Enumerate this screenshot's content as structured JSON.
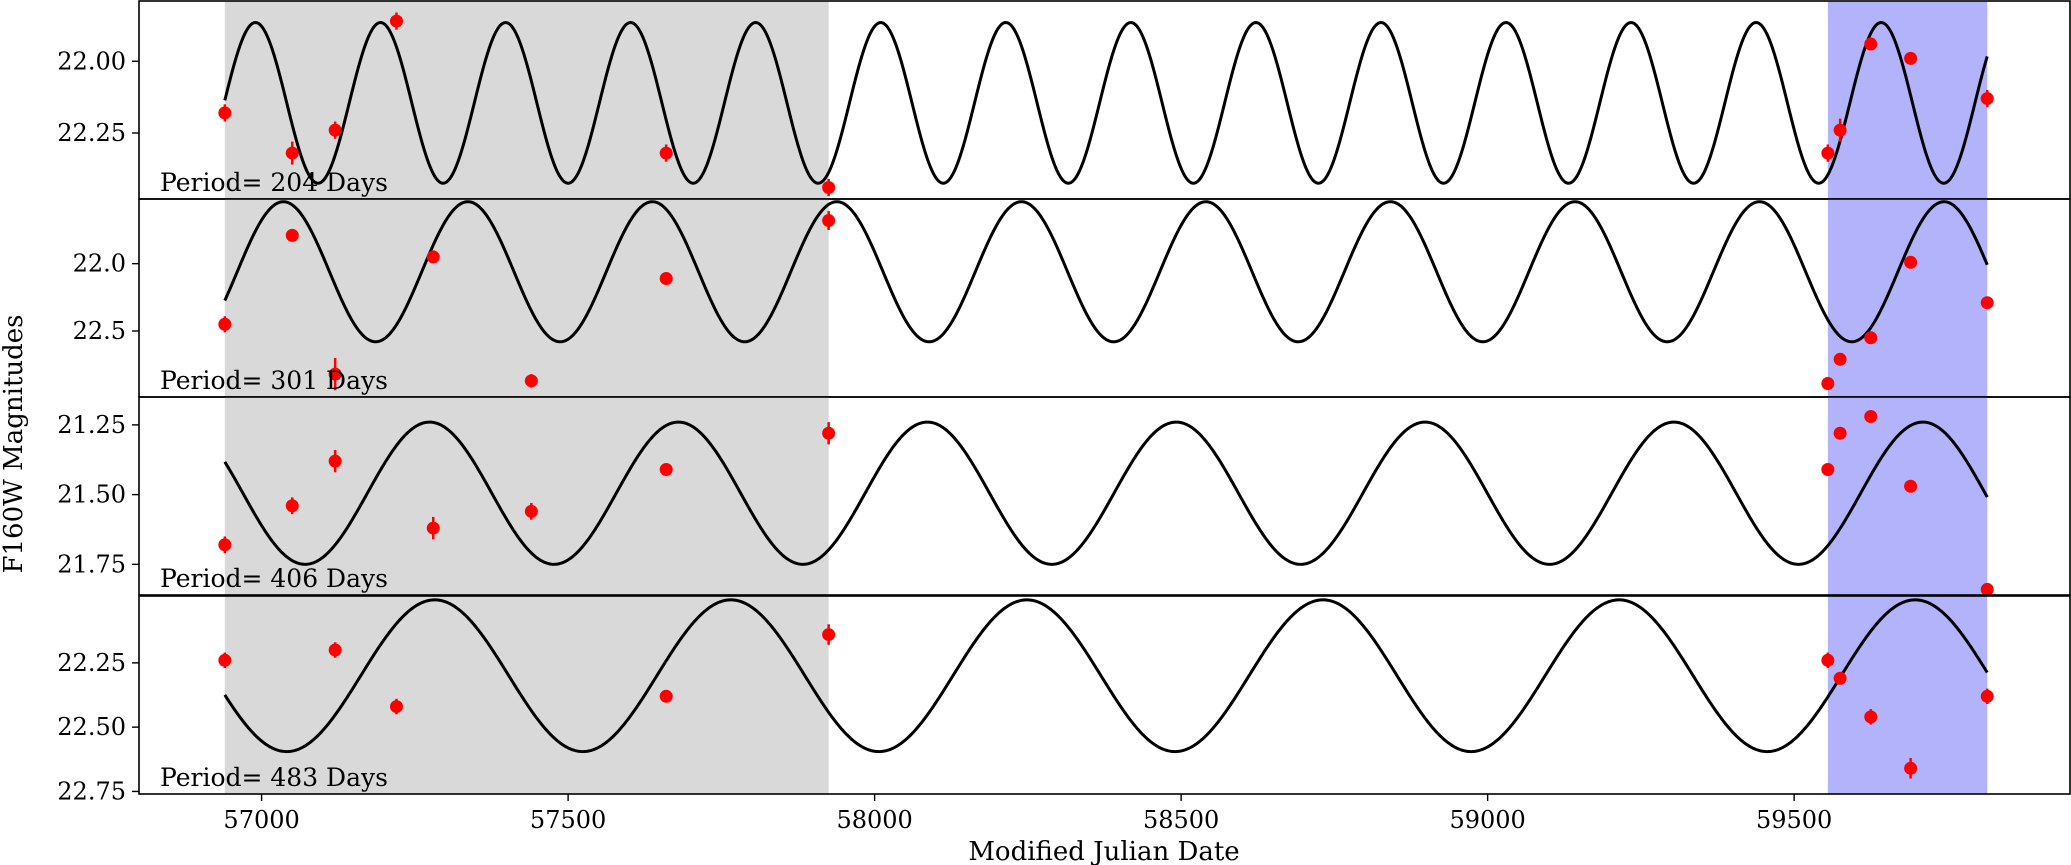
{
  "chart_data": {
    "type": "scatter",
    "xlabel": "Modified Julian Date",
    "ylabel": "F160W Magnitudes",
    "xlim": [
      56800,
      59950
    ],
    "x_ticks": [
      57000,
      57500,
      58000,
      58500,
      59000,
      59500
    ],
    "shaded_regions": [
      {
        "x0": 56940,
        "x1": 57925,
        "color": "#d9d9d9"
      },
      {
        "x0": 59555,
        "x1": 59815,
        "color": "#b3b3fb"
      }
    ],
    "curve_x_range": [
      56940,
      59815
    ],
    "colors": {
      "points": "#ff0000",
      "curve": "#000000"
    },
    "panels": [
      {
        "label": "Period= 204 Days",
        "period": 204,
        "ylim": [
          22.48,
          21.79
        ],
        "y_ticks": [
          22.0,
          22.25
        ],
        "y_tick_labels": [
          "22.00",
          "22.25"
        ],
        "model": {
          "mean": 22.145,
          "amplitude": 0.28,
          "phase_ref": 56888
        },
        "points": [
          {
            "x": 56940,
            "y": 22.18,
            "err": 0.03
          },
          {
            "x": 57050,
            "y": 22.32,
            "err": 0.04
          },
          {
            "x": 57120,
            "y": 22.24,
            "err": 0.03
          },
          {
            "x": 57220,
            "y": 21.86,
            "err": 0.03
          },
          {
            "x": 57660,
            "y": 22.32,
            "err": 0.03
          },
          {
            "x": 57925,
            "y": 22.44,
            "err": 0.03
          },
          {
            "x": 59555,
            "y": 22.32,
            "err": 0.03
          },
          {
            "x": 59575,
            "y": 22.24,
            "err": 0.04
          },
          {
            "x": 59625,
            "y": 21.94,
            "err": 0.02
          },
          {
            "x": 59690,
            "y": 21.99,
            "err": 0.02
          },
          {
            "x": 59815,
            "y": 22.13,
            "err": 0.03
          }
        ]
      },
      {
        "label": "Period= 301 Days",
        "period": 301,
        "ylim": [
          22.99,
          21.52
        ],
        "y_ticks": [
          22.0,
          22.5
        ],
        "y_tick_labels": [
          "22.0",
          "22.5"
        ],
        "model": {
          "mean": 22.06,
          "amplitude": 0.52,
          "phase_ref": 56885
        },
        "points": [
          {
            "x": 56940,
            "y": 22.45,
            "err": 0.06
          },
          {
            "x": 57050,
            "y": 21.79,
            "err": 0.02
          },
          {
            "x": 57120,
            "y": 22.82,
            "err": 0.12
          },
          {
            "x": 57280,
            "y": 21.95,
            "err": 0.02
          },
          {
            "x": 57440,
            "y": 22.87,
            "err": 0.05
          },
          {
            "x": 57660,
            "y": 22.11,
            "err": 0.02
          },
          {
            "x": 57925,
            "y": 21.68,
            "err": 0.07
          },
          {
            "x": 59555,
            "y": 22.89,
            "err": 0.03
          },
          {
            "x": 59575,
            "y": 22.71,
            "err": 0.03
          },
          {
            "x": 59625,
            "y": 22.55,
            "err": 0.03
          },
          {
            "x": 59690,
            "y": 21.99,
            "err": 0.02
          },
          {
            "x": 59815,
            "y": 22.29,
            "err": 0.02
          }
        ]
      },
      {
        "label": "Period= 406 Days",
        "period": 406,
        "ylim": [
          21.86,
          21.15
        ],
        "y_ticks": [
          21.25,
          21.5,
          21.75
        ],
        "y_tick_labels": [
          "21.25",
          "21.50",
          "21.75"
        ],
        "model": {
          "mean": 21.495,
          "amplitude": 0.255,
          "phase_ref": 57071
        },
        "points": [
          {
            "x": 56940,
            "y": 21.68,
            "err": 0.03
          },
          {
            "x": 57050,
            "y": 21.54,
            "err": 0.03
          },
          {
            "x": 57120,
            "y": 21.38,
            "err": 0.04
          },
          {
            "x": 57280,
            "y": 21.62,
            "err": 0.04
          },
          {
            "x": 57440,
            "y": 21.56,
            "err": 0.03
          },
          {
            "x": 57660,
            "y": 21.41,
            "err": 0.02
          },
          {
            "x": 57925,
            "y": 21.28,
            "err": 0.04
          },
          {
            "x": 59555,
            "y": 21.41,
            "err": 0.02
          },
          {
            "x": 59575,
            "y": 21.28,
            "err": 0.02
          },
          {
            "x": 59625,
            "y": 21.22,
            "err": 0.02
          },
          {
            "x": 59690,
            "y": 21.47,
            "err": 0.02
          },
          {
            "x": 59815,
            "y": 21.84,
            "err": 0.02
          }
        ]
      },
      {
        "label": "Period= 483 Days",
        "period": 483,
        "ylim": [
          22.76,
          21.99
        ],
        "y_ticks": [
          22.25,
          22.5,
          22.75
        ],
        "y_tick_labels": [
          "22.25",
          "22.50",
          "22.75"
        ],
        "model": {
          "mean": 22.3,
          "amplitude": 0.295,
          "phase_ref": 57041
        },
        "points": [
          {
            "x": 56940,
            "y": 22.24,
            "err": 0.03
          },
          {
            "x": 57120,
            "y": 22.2,
            "err": 0.03
          },
          {
            "x": 57220,
            "y": 22.42,
            "err": 0.03
          },
          {
            "x": 57660,
            "y": 22.38,
            "err": 0.02
          },
          {
            "x": 57925,
            "y": 22.14,
            "err": 0.04
          },
          {
            "x": 59555,
            "y": 22.24,
            "err": 0.03
          },
          {
            "x": 59575,
            "y": 22.31,
            "err": 0.02
          },
          {
            "x": 59625,
            "y": 22.46,
            "err": 0.03
          },
          {
            "x": 59690,
            "y": 22.66,
            "err": 0.04
          },
          {
            "x": 59815,
            "y": 22.38,
            "err": 0.03
          }
        ]
      }
    ]
  }
}
